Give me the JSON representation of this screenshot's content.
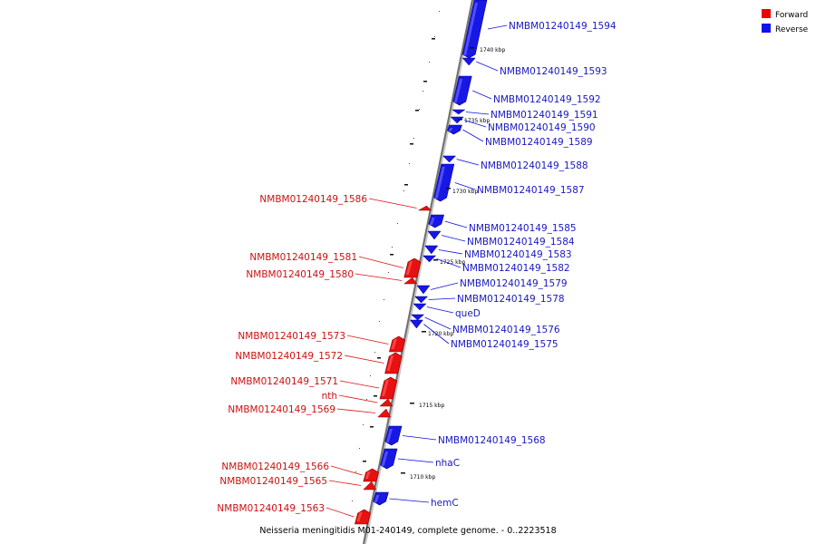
{
  "caption": "Neisseria meningitidis M01-240149, complete genome. - 0..2223518",
  "legend": [
    {
      "label": "Forward",
      "color": "#ee0000"
    },
    {
      "label": "Reverse",
      "color": "#1111ee"
    }
  ],
  "scale_ticks": [
    {
      "label": "1740 kbp",
      "kbp": 1740
    },
    {
      "label": "1735 kbp",
      "kbp": 1735
    },
    {
      "label": "1730 kbp",
      "kbp": 1730
    },
    {
      "label": "1725 kbp",
      "kbp": 1725
    },
    {
      "label": "1720 kbp",
      "kbp": 1720
    },
    {
      "label": "1715 kbp",
      "kbp": 1715
    },
    {
      "label": "1710 kbp",
      "kbp": 1710
    }
  ],
  "genes": [
    {
      "name": "NMBM01240149_1594",
      "strand": "reverse"
    },
    {
      "name": "NMBM01240149_1593",
      "strand": "reverse"
    },
    {
      "name": "NMBM01240149_1592",
      "strand": "reverse"
    },
    {
      "name": "NMBM01240149_1591",
      "strand": "reverse"
    },
    {
      "name": "NMBM01240149_1590",
      "strand": "reverse"
    },
    {
      "name": "NMBM01240149_1589",
      "strand": "reverse"
    },
    {
      "name": "NMBM01240149_1588",
      "strand": "reverse"
    },
    {
      "name": "NMBM01240149_1587",
      "strand": "reverse"
    },
    {
      "name": "NMBM01240149_1586",
      "strand": "forward"
    },
    {
      "name": "NMBM01240149_1585",
      "strand": "reverse"
    },
    {
      "name": "NMBM01240149_1584",
      "strand": "reverse"
    },
    {
      "name": "NMBM01240149_1583",
      "strand": "reverse"
    },
    {
      "name": "NMBM01240149_1582",
      "strand": "reverse"
    },
    {
      "name": "NMBM01240149_1581",
      "strand": "forward"
    },
    {
      "name": "NMBM01240149_1580",
      "strand": "forward"
    },
    {
      "name": "NMBM01240149_1579",
      "strand": "reverse"
    },
    {
      "name": "NMBM01240149_1578",
      "strand": "reverse"
    },
    {
      "name": "queD",
      "strand": "reverse"
    },
    {
      "name": "NMBM01240149_1576",
      "strand": "reverse"
    },
    {
      "name": "NMBM01240149_1575",
      "strand": "reverse"
    },
    {
      "name": "NMBM01240149_1573",
      "strand": "forward"
    },
    {
      "name": "NMBM01240149_1572",
      "strand": "forward"
    },
    {
      "name": "NMBM01240149_1571",
      "strand": "forward"
    },
    {
      "name": "nth",
      "strand": "forward"
    },
    {
      "name": "NMBM01240149_1569",
      "strand": "forward"
    },
    {
      "name": "NMBM01240149_1568",
      "strand": "reverse"
    },
    {
      "name": "nhaC",
      "strand": "reverse"
    },
    {
      "name": "NMBM01240149_1566",
      "strand": "forward"
    },
    {
      "name": "NMBM01240149_1565",
      "strand": "forward"
    },
    {
      "name": "hemC",
      "strand": "reverse"
    },
    {
      "name": "NMBM01240149_1563",
      "strand": "forward"
    }
  ]
}
